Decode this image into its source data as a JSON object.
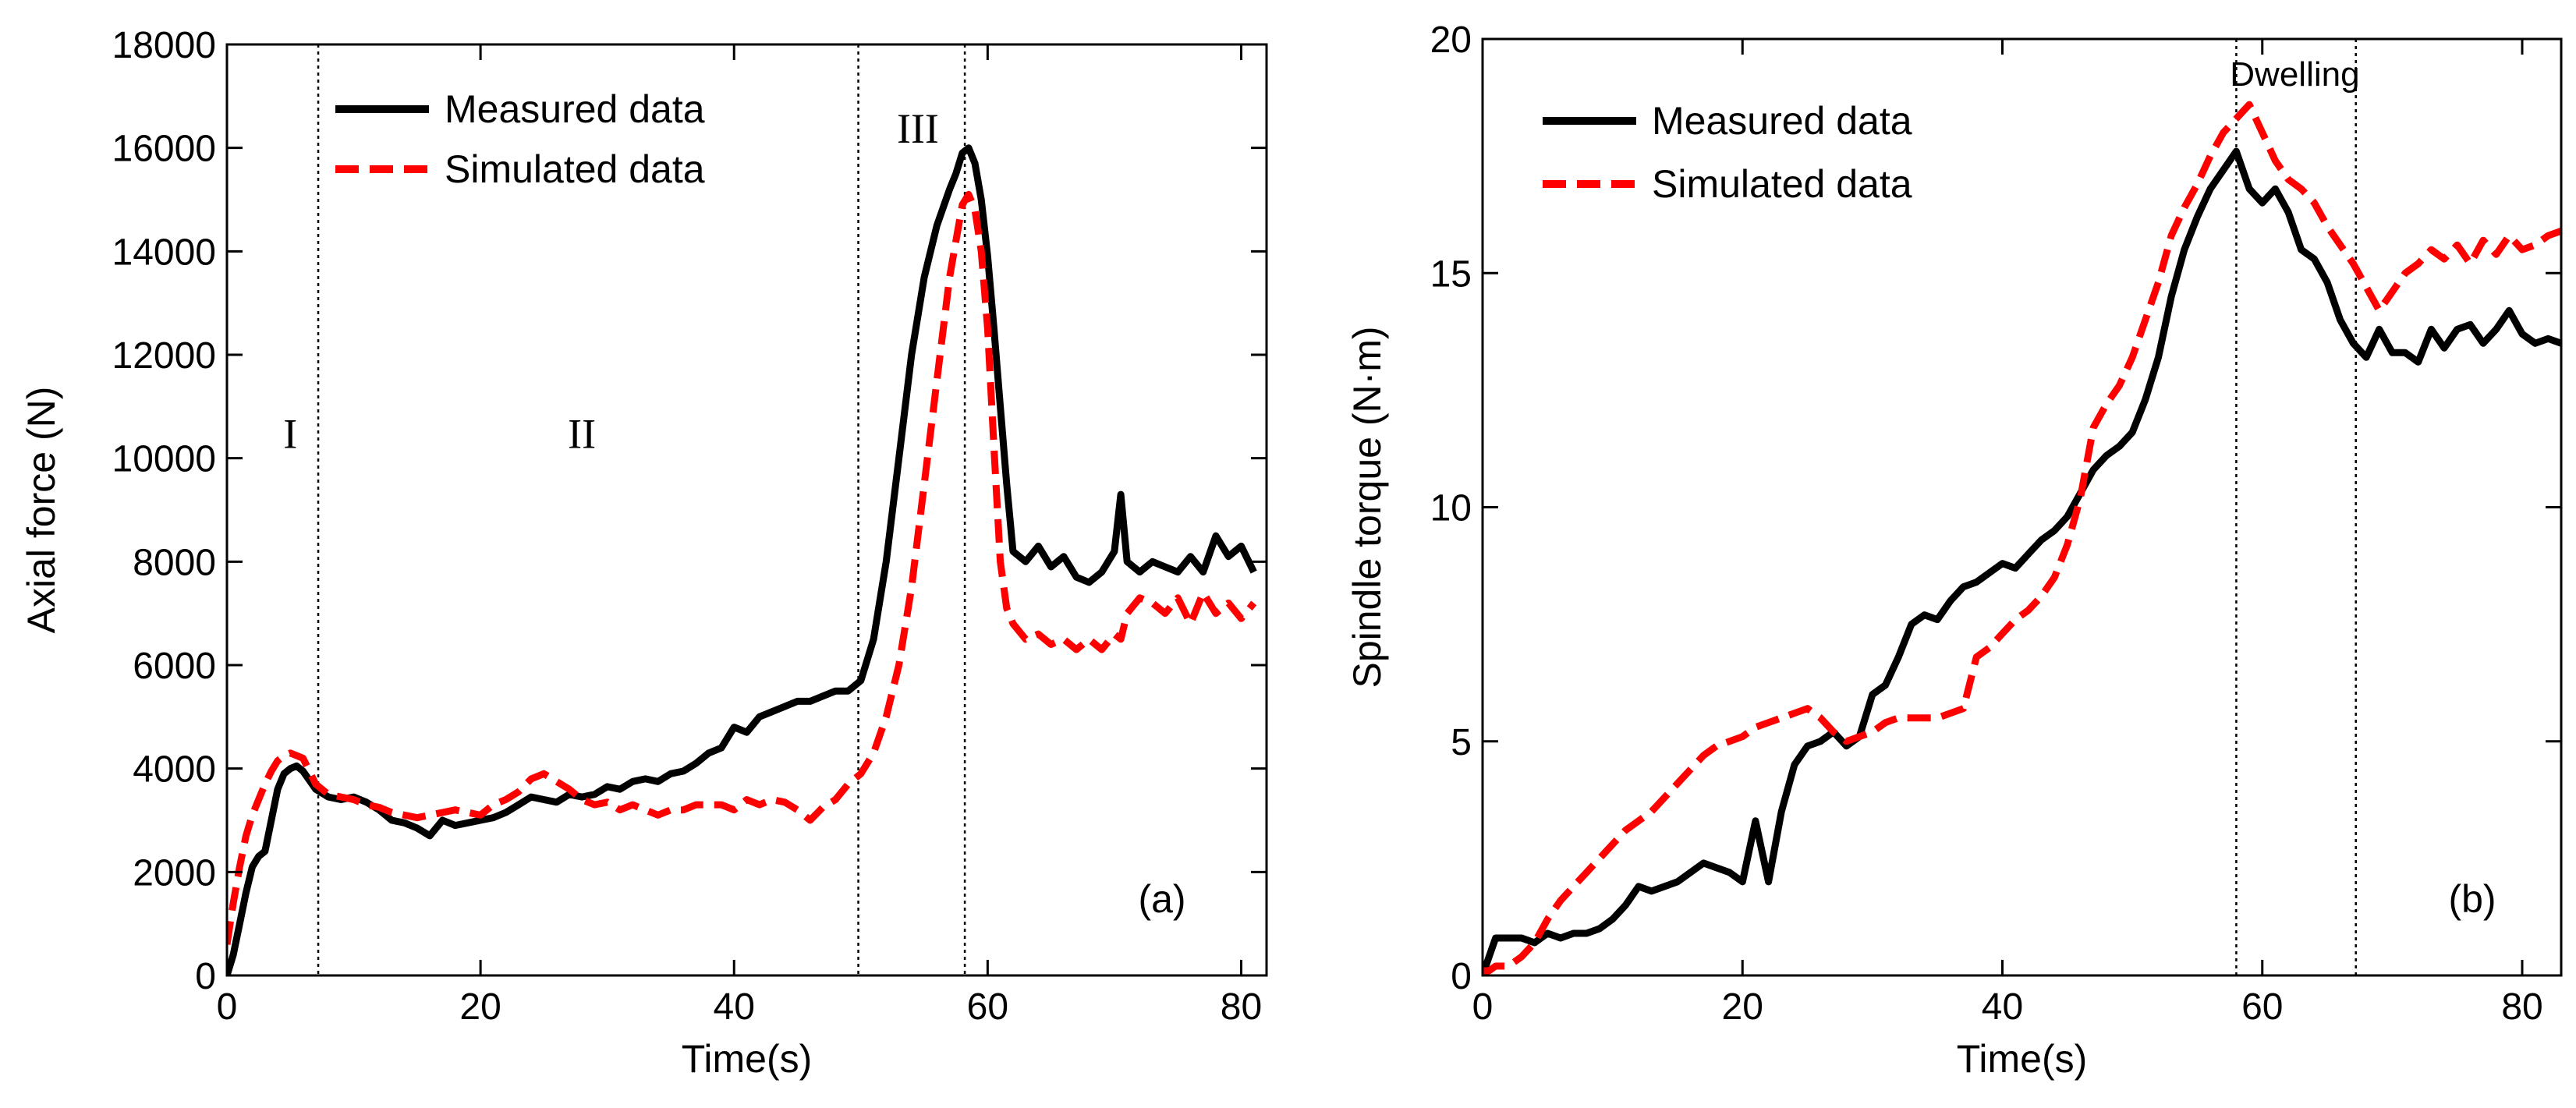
{
  "chart_data": [
    {
      "id": "a",
      "type": "line",
      "panel_label": "(a)",
      "xlabel": "Time(s)",
      "ylabel": "Axial force (N)",
      "xlim": [
        0,
        82
      ],
      "ylim": [
        0,
        18000
      ],
      "xticks": [
        0,
        20,
        40,
        60,
        80
      ],
      "xtick_labels": [
        "0",
        "20",
        "40",
        "60",
        "80"
      ],
      "yticks": [
        0,
        2000,
        4000,
        6000,
        8000,
        10000,
        12000,
        14000,
        16000,
        18000
      ],
      "ytick_labels": [
        "0",
        "2000",
        "4000",
        "6000",
        "8000",
        "10000",
        "12000",
        "14000",
        "16000",
        "18000"
      ],
      "grid": false,
      "legend_position": "top-left",
      "vlines": [
        7.2,
        49.8,
        58.2
      ],
      "region_labels": [
        {
          "text": "I",
          "x": 5.0,
          "y": 10200
        },
        {
          "text": "II",
          "x": 28.0,
          "y": 10200
        },
        {
          "text": "III",
          "x": 54.5,
          "y": 16100
        }
      ],
      "series": [
        {
          "name": "Measured data",
          "color": "#000000",
          "style": "solid",
          "x": [
            0,
            0.5,
            1,
            1.5,
            2,
            2.5,
            3,
            3.5,
            4,
            4.5,
            5,
            5.5,
            6,
            7,
            8,
            9,
            10,
            11,
            12,
            13,
            14,
            15,
            16,
            17,
            18,
            19,
            20,
            21,
            22,
            23,
            24,
            25,
            26,
            27,
            28,
            29,
            30,
            31,
            32,
            33,
            34,
            35,
            36,
            37,
            38,
            39,
            40,
            41,
            42,
            43,
            44,
            45,
            46,
            47,
            48,
            49,
            50,
            51,
            52,
            53,
            54,
            55,
            56,
            57,
            57.5,
            58,
            58.5,
            59,
            59.5,
            60,
            60.5,
            61,
            61.5,
            62,
            63,
            64,
            65,
            66,
            67,
            68,
            69,
            70,
            70.5,
            71,
            72,
            73,
            74,
            75,
            76,
            77,
            78,
            79,
            80,
            81
          ],
          "values": [
            0,
            400,
            1000,
            1600,
            2100,
            2300,
            2400,
            3000,
            3600,
            3900,
            4000,
            4050,
            3950,
            3600,
            3450,
            3400,
            3450,
            3350,
            3200,
            3000,
            2950,
            2850,
            2700,
            3000,
            2900,
            2950,
            3000,
            3050,
            3150,
            3300,
            3450,
            3400,
            3350,
            3500,
            3450,
            3500,
            3650,
            3600,
            3750,
            3800,
            3750,
            3900,
            3950,
            4100,
            4300,
            4400,
            4800,
            4700,
            5000,
            5100,
            5200,
            5300,
            5300,
            5400,
            5500,
            5500,
            5700,
            6500,
            8000,
            10000,
            12000,
            13500,
            14500,
            15200,
            15500,
            15900,
            16000,
            15700,
            15000,
            13900,
            12500,
            11000,
            9500,
            8200,
            8000,
            8300,
            7900,
            8100,
            7700,
            7600,
            7800,
            8200,
            9300,
            8000,
            7800,
            8000,
            7900,
            7800,
            8100,
            7800,
            8500,
            8100,
            8300,
            7800
          ]
        },
        {
          "name": "Simulated data",
          "color": "#ff0000",
          "style": "dashed",
          "x": [
            0,
            0.5,
            1,
            1.5,
            2,
            2.5,
            3,
            3.5,
            4,
            4.5,
            5,
            5.5,
            6,
            7,
            8,
            9,
            10,
            11,
            12,
            13,
            14,
            15,
            16,
            17,
            18,
            19,
            20,
            21,
            22,
            23,
            24,
            25,
            26,
            27,
            28,
            29,
            30,
            31,
            32,
            33,
            34,
            35,
            36,
            37,
            38,
            39,
            40,
            41,
            42,
            43,
            44,
            45,
            46,
            47,
            48,
            49,
            50,
            51,
            52,
            53,
            54,
            55,
            56,
            57,
            57.5,
            58,
            58.5,
            59,
            59.5,
            60,
            60.5,
            61,
            61.5,
            62,
            63,
            64,
            65,
            66,
            67,
            68,
            69,
            70,
            70.5,
            71,
            72,
            73,
            74,
            75,
            76,
            77,
            78,
            79,
            80,
            81
          ],
          "values": [
            600,
            1400,
            2100,
            2700,
            3100,
            3400,
            3700,
            3950,
            4150,
            4250,
            4300,
            4250,
            4200,
            3700,
            3500,
            3450,
            3400,
            3300,
            3250,
            3150,
            3100,
            3050,
            3100,
            3150,
            3200,
            3150,
            3100,
            3300,
            3400,
            3550,
            3800,
            3900,
            3750,
            3600,
            3400,
            3300,
            3350,
            3200,
            3300,
            3200,
            3100,
            3200,
            3200,
            3300,
            3300,
            3300,
            3200,
            3400,
            3300,
            3400,
            3350,
            3200,
            3000,
            3250,
            3400,
            3700,
            3900,
            4300,
            5000,
            6000,
            7500,
            9500,
            11500,
            13500,
            14200,
            14900,
            15100,
            14800,
            14000,
            12500,
            10200,
            8000,
            7100,
            6800,
            6500,
            6600,
            6400,
            6500,
            6300,
            6500,
            6300,
            6600,
            6500,
            7000,
            7300,
            7200,
            7000,
            7300,
            6800,
            7400,
            7000,
            7200,
            6900,
            7200
          ]
        }
      ]
    },
    {
      "id": "b",
      "type": "line",
      "panel_label": "(b)",
      "xlabel": "Time(s)",
      "ylabel": "Spindle torque (N·m)",
      "xlim": [
        0,
        83
      ],
      "ylim": [
        0,
        20
      ],
      "xticks": [
        0,
        20,
        40,
        60,
        80
      ],
      "xtick_labels": [
        "0",
        "20",
        "40",
        "60",
        "80"
      ],
      "yticks": [
        0,
        5,
        10,
        15,
        20
      ],
      "ytick_labels": [
        "0",
        "5",
        "10",
        "15",
        "20"
      ],
      "grid": false,
      "legend_position": "top-left",
      "vlines": [
        58,
        67.2
      ],
      "region_labels": [
        {
          "text": "Dwelling",
          "x": 62.5,
          "y": 19.0
        }
      ],
      "series": [
        {
          "name": "Measured data",
          "color": "#000000",
          "style": "solid",
          "x": [
            0,
            0.5,
            1,
            2,
            3,
            4,
            5,
            6,
            7,
            8,
            9,
            10,
            11,
            12,
            13,
            14,
            15,
            16,
            17,
            18,
            19,
            20,
            21,
            22,
            23,
            24,
            25,
            26,
            27,
            28,
            29,
            30,
            31,
            32,
            33,
            34,
            35,
            36,
            37,
            38,
            39,
            40,
            41,
            42,
            43,
            44,
            45,
            46,
            47,
            48,
            49,
            50,
            51,
            52,
            53,
            54,
            55,
            56,
            57,
            58,
            59,
            60,
            61,
            62,
            63,
            64,
            65,
            66,
            67,
            68,
            69,
            70,
            71,
            72,
            73,
            74,
            75,
            76,
            77,
            78,
            79,
            80,
            81,
            82,
            83
          ],
          "values": [
            0,
            0.4,
            0.8,
            0.8,
            0.8,
            0.7,
            0.9,
            0.8,
            0.9,
            0.9,
            1.0,
            1.2,
            1.5,
            1.9,
            1.8,
            1.9,
            2.0,
            2.2,
            2.4,
            2.3,
            2.2,
            2.0,
            3.3,
            2.0,
            3.5,
            4.5,
            4.9,
            5.0,
            5.2,
            4.9,
            5.1,
            6.0,
            6.2,
            6.8,
            7.5,
            7.7,
            7.6,
            8.0,
            8.3,
            8.4,
            8.6,
            8.8,
            8.7,
            9.0,
            9.3,
            9.5,
            9.8,
            10.3,
            10.8,
            11.1,
            11.3,
            11.6,
            12.3,
            13.2,
            14.5,
            15.5,
            16.2,
            16.8,
            17.2,
            17.6,
            16.8,
            16.5,
            16.8,
            16.3,
            15.5,
            15.3,
            14.8,
            14.0,
            13.5,
            13.2,
            13.8,
            13.3,
            13.3,
            13.1,
            13.8,
            13.4,
            13.8,
            13.9,
            13.5,
            13.8,
            14.2,
            13.7,
            13.5,
            13.6,
            13.5
          ]
        },
        {
          "name": "Simulated data",
          "color": "#ff0000",
          "style": "dashed",
          "x": [
            0,
            0.5,
            1,
            2,
            3,
            4,
            5,
            6,
            7,
            8,
            9,
            10,
            11,
            12,
            13,
            14,
            15,
            16,
            17,
            18,
            19,
            20,
            21,
            22,
            23,
            24,
            25,
            26,
            27,
            28,
            29,
            30,
            31,
            32,
            33,
            34,
            35,
            36,
            37,
            38,
            39,
            40,
            41,
            42,
            43,
            44,
            45,
            46,
            47,
            48,
            49,
            50,
            51,
            52,
            53,
            54,
            55,
            56,
            57,
            58,
            59,
            60,
            61,
            62,
            63,
            64,
            65,
            66,
            67,
            68,
            69,
            70,
            71,
            72,
            73,
            74,
            75,
            76,
            77,
            78,
            79,
            80,
            81,
            82,
            83
          ],
          "values": [
            0.1,
            0.1,
            0.2,
            0.2,
            0.4,
            0.7,
            1.2,
            1.6,
            1.9,
            2.2,
            2.5,
            2.8,
            3.1,
            3.3,
            3.5,
            3.8,
            4.1,
            4.4,
            4.7,
            4.9,
            5.0,
            5.1,
            5.3,
            5.4,
            5.5,
            5.6,
            5.7,
            5.5,
            5.2,
            5.0,
            5.1,
            5.2,
            5.4,
            5.5,
            5.5,
            5.5,
            5.5,
            5.6,
            5.7,
            6.8,
            7.0,
            7.3,
            7.6,
            7.8,
            8.1,
            8.5,
            9.2,
            10.2,
            11.7,
            12.2,
            12.6,
            13.2,
            14.0,
            14.8,
            15.8,
            16.4,
            16.9,
            17.5,
            18.0,
            18.3,
            18.6,
            18.0,
            17.4,
            17.0,
            16.8,
            16.5,
            16.0,
            15.6,
            15.2,
            14.7,
            14.2,
            14.6,
            15.0,
            15.2,
            15.5,
            15.3,
            15.6,
            15.2,
            15.7,
            15.4,
            15.8,
            15.5,
            15.6,
            15.8,
            15.9
          ]
        }
      ]
    }
  ]
}
